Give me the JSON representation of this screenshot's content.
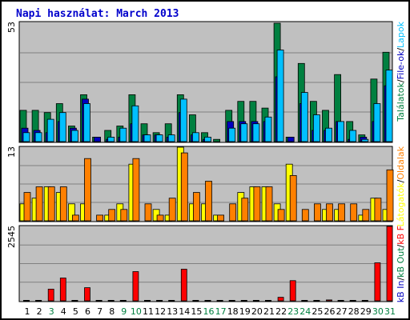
{
  "title": "Napi használat: March 2013",
  "colors": {
    "hits": "#008040",
    "files": "#0000c0",
    "pages": "#00c0ff",
    "visits": "#ffff00",
    "sites": "#ff8000",
    "kb": "#ff0000",
    "panel_bg": "#c0c0c0",
    "day_normal": "#000000",
    "day_weekend": "#008040"
  },
  "axis_max": {
    "top": "53",
    "middle": "13",
    "bottom": "2545"
  },
  "legend": {
    "top": [
      "Találatok",
      "/",
      "File-ok",
      "/",
      "Lapok"
    ],
    "middle": [
      "Látogatók",
      "/",
      "Oldalak"
    ],
    "bottom": [
      "kB In",
      "/",
      "kB Out",
      "/",
      "kB F"
    ]
  },
  "chart_data": [
    {
      "type": "bar",
      "title": "Napi használat: March 2013",
      "categories": [
        "1",
        "2",
        "3",
        "4",
        "5",
        "6",
        "7",
        "8",
        "9",
        "10",
        "11",
        "12",
        "13",
        "14",
        "15",
        "16",
        "17",
        "18",
        "19",
        "20",
        "21",
        "22",
        "23",
        "24",
        "25",
        "26",
        "27",
        "28",
        "29",
        "30",
        "31"
      ],
      "weekend_days": [
        "3",
        "9",
        "10",
        "16",
        "17",
        "23",
        "24",
        "30",
        "31"
      ],
      "ylim": [
        0,
        53
      ],
      "series": [
        {
          "name": "Találatok",
          "values": [
            14,
            14,
            13,
            17,
            7,
            21,
            2,
            5,
            7,
            21,
            8,
            4,
            8,
            21,
            12,
            4,
            1,
            14,
            18,
            18,
            15,
            53,
            2,
            35,
            18,
            14,
            30,
            9,
            3,
            28,
            40
          ]
        },
        {
          "name": "File-ok",
          "values": [
            6,
            5,
            4,
            9,
            6,
            19,
            2,
            1,
            2,
            8,
            3,
            3,
            2,
            13,
            3,
            1,
            0,
            9,
            9,
            9,
            9,
            29,
            2,
            17,
            5,
            5,
            9,
            1,
            2,
            9,
            25
          ]
        },
        {
          "name": "Lapok",
          "values": [
            4,
            4,
            10,
            13,
            5,
            17,
            0,
            2,
            6,
            16,
            3,
            3,
            3,
            19,
            4,
            2,
            0,
            6,
            8,
            8,
            11,
            41,
            0,
            22,
            12,
            6,
            9,
            5,
            1,
            17,
            32
          ]
        }
      ]
    },
    {
      "type": "bar",
      "categories": [
        "1",
        "2",
        "3",
        "4",
        "5",
        "6",
        "7",
        "8",
        "9",
        "10",
        "11",
        "12",
        "13",
        "14",
        "15",
        "16",
        "17",
        "18",
        "19",
        "20",
        "21",
        "22",
        "23",
        "24",
        "25",
        "26",
        "27",
        "28",
        "29",
        "30",
        "31"
      ],
      "ylim": [
        0,
        13
      ],
      "series": [
        {
          "name": "Látogatók",
          "values": [
            3,
            4,
            6,
            5,
            3,
            3,
            0,
            1,
            3,
            10,
            0,
            2,
            1,
            13,
            3,
            3,
            1,
            0,
            5,
            6,
            6,
            3,
            10,
            0,
            0,
            2,
            2,
            0,
            1,
            4,
            2
          ]
        },
        {
          "name": "Oldalak",
          "values": [
            5,
            6,
            6,
            6,
            1,
            11,
            1,
            2,
            2,
            11,
            3,
            1,
            4,
            12,
            5,
            7,
            1,
            3,
            4,
            6,
            6,
            2,
            8,
            2,
            3,
            3,
            3,
            3,
            2,
            4,
            9
          ]
        }
      ]
    },
    {
      "type": "bar",
      "categories": [
        "1",
        "2",
        "3",
        "4",
        "5",
        "6",
        "7",
        "8",
        "9",
        "10",
        "11",
        "12",
        "13",
        "14",
        "15",
        "16",
        "17",
        "18",
        "19",
        "20",
        "21",
        "22",
        "23",
        "24",
        "25",
        "26",
        "27",
        "28",
        "29",
        "30",
        "31"
      ],
      "ylim": [
        0,
        2545
      ],
      "series": [
        {
          "name": "kB F",
          "values": [
            0,
            0,
            400,
            780,
            0,
            450,
            0,
            0,
            0,
            1000,
            0,
            0,
            0,
            1080,
            0,
            0,
            0,
            0,
            0,
            0,
            0,
            120,
            690,
            0,
            0,
            30,
            0,
            0,
            0,
            1300,
            2545
          ]
        }
      ]
    }
  ]
}
